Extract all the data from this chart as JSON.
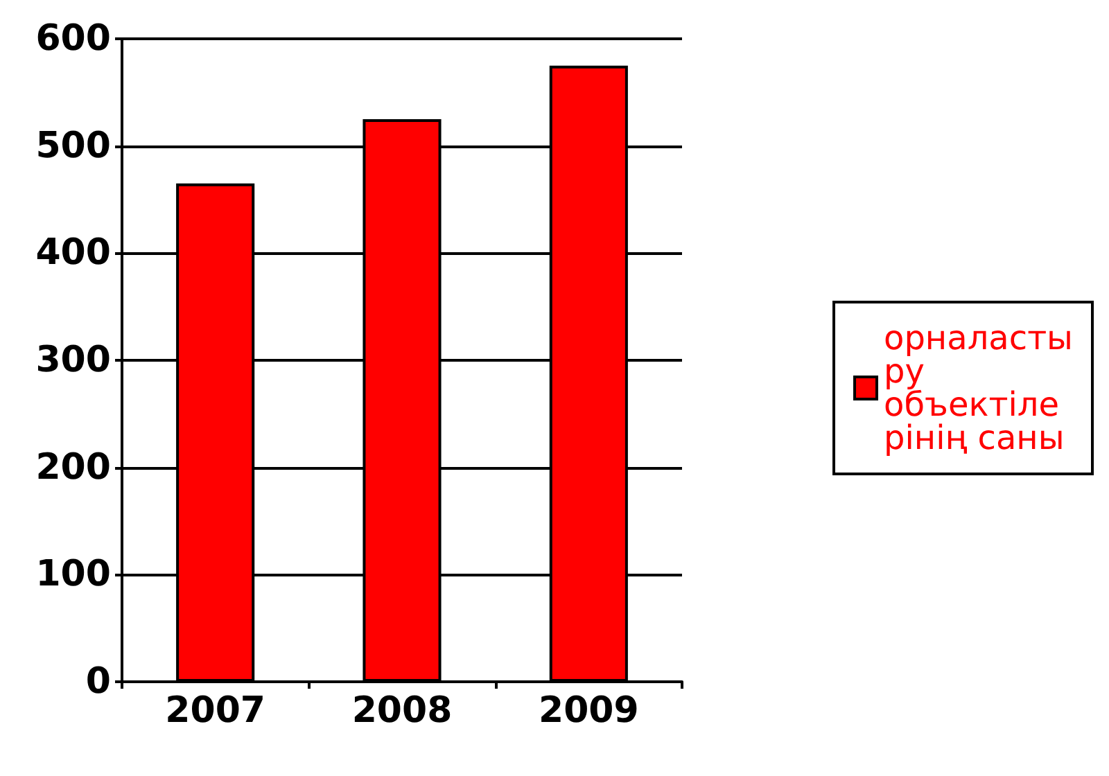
{
  "chart_data": {
    "type": "bar",
    "categories": [
      "2007",
      "2008",
      "2009"
    ],
    "series": [
      {
        "name": "орналастыру объектілерінің саны",
        "color": "#ff0000",
        "values": [
          465,
          525,
          575
        ]
      }
    ],
    "ylim": [
      0,
      600
    ],
    "yticks": [
      0,
      100,
      200,
      300,
      400,
      500,
      600
    ],
    "grid": "y",
    "legend": "right"
  }
}
